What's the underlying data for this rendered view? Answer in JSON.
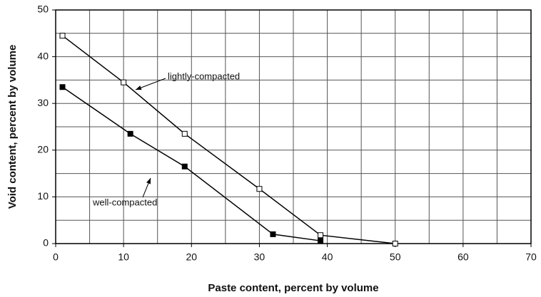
{
  "chart_data": {
    "type": "line",
    "xlabel": "Paste content, percent by volume",
    "ylabel": "Void content, percent by volume",
    "xlim": [
      0,
      70
    ],
    "xticks": [
      0,
      10,
      20,
      30,
      40,
      50,
      60,
      70
    ],
    "ylim": [
      0,
      50
    ],
    "yticks": [
      0,
      10,
      20,
      30,
      40,
      50
    ],
    "xgrid_minor": [
      5,
      15,
      25,
      35,
      45,
      55,
      65
    ],
    "ygrid_minor": [
      5,
      15,
      25,
      35,
      45
    ],
    "grid": true,
    "series": [
      {
        "name": "lightly-compacted",
        "color": "#000000",
        "marker_fill": "#ffffff",
        "x": [
          1,
          10,
          19,
          30,
          39,
          50
        ],
        "values": [
          44.5,
          34.5,
          23.5,
          11.7,
          1.8,
          0
        ]
      },
      {
        "name": "well-compacted",
        "color": "#000000",
        "marker_fill": "#000000",
        "x": [
          1,
          11,
          19,
          32,
          39
        ],
        "values": [
          33.5,
          23.5,
          16.5,
          2,
          0.6
        ]
      }
    ]
  }
}
